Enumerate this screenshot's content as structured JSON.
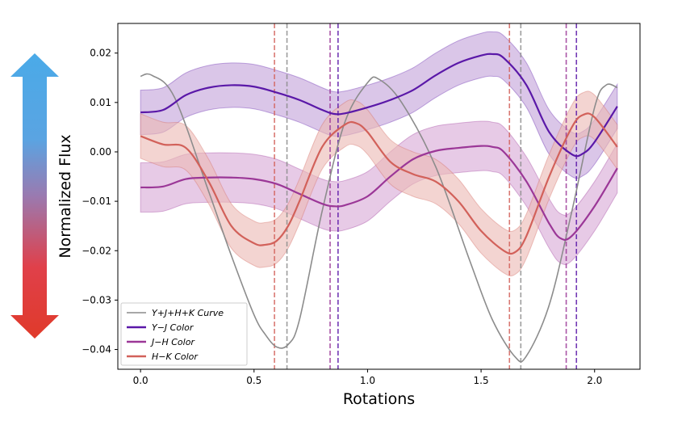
{
  "chart_data": {
    "type": "line",
    "xlabel": "Rotations",
    "ylabel": "Normalized Flux",
    "xlim": [
      -0.1,
      2.2
    ],
    "ylim": [
      -0.044,
      0.026
    ],
    "xticks": [
      0.0,
      0.5,
      1.0,
      1.5,
      2.0
    ],
    "xtick_labels": [
      "0.0",
      "0.5",
      "1.0",
      "1.5",
      "2.0"
    ],
    "yticks": [
      0.02,
      0.01,
      0.0,
      -0.01,
      -0.02,
      -0.03,
      -0.04
    ],
    "ytick_labels": [
      "0.02",
      "0.01",
      "0.00",
      "−0.01",
      "−0.02",
      "−0.03",
      "−0.04"
    ],
    "legend_position": "lower-left",
    "arrow": {
      "top_color": "#4aaae8",
      "mid_color": "#9a7ab0",
      "bottom_color": "#e03a2a"
    },
    "series": [
      {
        "name": "Y + J + H + K Curve",
        "legend_label": "Y+J+H+K Curve",
        "color": "#8c8c8c",
        "band": 0,
        "x": [
          0.0,
          0.05,
          0.15,
          0.3,
          0.4,
          0.5,
          0.55,
          0.6,
          0.65,
          0.7,
          0.8,
          0.9,
          1.0,
          1.05,
          1.15,
          1.3,
          1.45,
          1.55,
          1.65,
          1.7,
          1.8,
          1.9,
          2.0,
          2.05,
          2.1
        ],
        "y": [
          0.0153,
          0.0155,
          0.011,
          -0.008,
          -0.021,
          -0.033,
          -0.037,
          -0.0395,
          -0.039,
          -0.034,
          -0.012,
          0.006,
          0.014,
          0.0147,
          0.01,
          -0.003,
          -0.022,
          -0.034,
          -0.0415,
          -0.0413,
          -0.031,
          -0.012,
          0.009,
          0.0135,
          0.013
        ],
        "dashed_minima": [
          0.645,
          1.675
        ]
      },
      {
        "name": "Y − J Color",
        "legend_label": "Y−J Color",
        "color": "#5a18a8",
        "fill": "#c3a3da",
        "band": 0.0045,
        "x": [
          0.0,
          0.1,
          0.2,
          0.3,
          0.4,
          0.5,
          0.6,
          0.7,
          0.8,
          0.85,
          0.9,
          1.0,
          1.1,
          1.2,
          1.3,
          1.4,
          1.5,
          1.55,
          1.6,
          1.7,
          1.8,
          1.9,
          1.95,
          2.0,
          2.1
        ],
        "y": [
          0.008,
          0.0085,
          0.0115,
          0.013,
          0.0135,
          0.0132,
          0.012,
          0.0105,
          0.0085,
          0.0077,
          0.0078,
          0.009,
          0.0105,
          0.0125,
          0.0155,
          0.018,
          0.0195,
          0.0198,
          0.019,
          0.0135,
          0.004,
          -0.0005,
          -0.0003,
          0.002,
          0.0092
        ],
        "dashed_minima": [
          0.87,
          1.92
        ]
      },
      {
        "name": "J − H Color",
        "legend_label": "J−H Color",
        "color": "#9b3797",
        "fill": "#d8a9d6",
        "band": 0.005,
        "x": [
          0.0,
          0.1,
          0.2,
          0.3,
          0.4,
          0.5,
          0.6,
          0.7,
          0.8,
          0.85,
          0.9,
          1.0,
          1.1,
          1.2,
          1.3,
          1.4,
          1.5,
          1.55,
          1.6,
          1.7,
          1.8,
          1.85,
          1.9,
          2.0,
          2.1
        ],
        "y": [
          -0.0072,
          -0.007,
          -0.0055,
          -0.0052,
          -0.0052,
          -0.0055,
          -0.0065,
          -0.0085,
          -0.0105,
          -0.011,
          -0.0108,
          -0.009,
          -0.005,
          -0.0015,
          0.0002,
          0.0008,
          0.0012,
          0.001,
          0.0,
          -0.006,
          -0.0145,
          -0.0175,
          -0.017,
          -0.011,
          -0.0033
        ],
        "dashed_minima": [
          0.835,
          1.875
        ]
      },
      {
        "name": "H − K Color",
        "legend_label": "H−K Color",
        "color": "#d2615a",
        "fill": "#ecbab5",
        "band": 0.0045,
        "x": [
          0.0,
          0.1,
          0.2,
          0.3,
          0.4,
          0.5,
          0.55,
          0.6,
          0.65,
          0.7,
          0.8,
          0.9,
          0.95,
          1.0,
          1.1,
          1.2,
          1.3,
          1.4,
          1.5,
          1.6,
          1.65,
          1.7,
          1.8,
          1.9,
          1.95,
          2.0,
          2.1
        ],
        "y": [
          0.0032,
          0.0015,
          0.0008,
          -0.006,
          -0.015,
          -0.0185,
          -0.0188,
          -0.018,
          -0.015,
          -0.01,
          0.001,
          0.0055,
          0.0058,
          0.004,
          -0.002,
          -0.0045,
          -0.006,
          -0.01,
          -0.016,
          -0.02,
          -0.0203,
          -0.017,
          -0.005,
          0.005,
          0.0075,
          0.007,
          0.001
        ],
        "dashed_minima": [
          0.59,
          1.625
        ]
      }
    ]
  }
}
